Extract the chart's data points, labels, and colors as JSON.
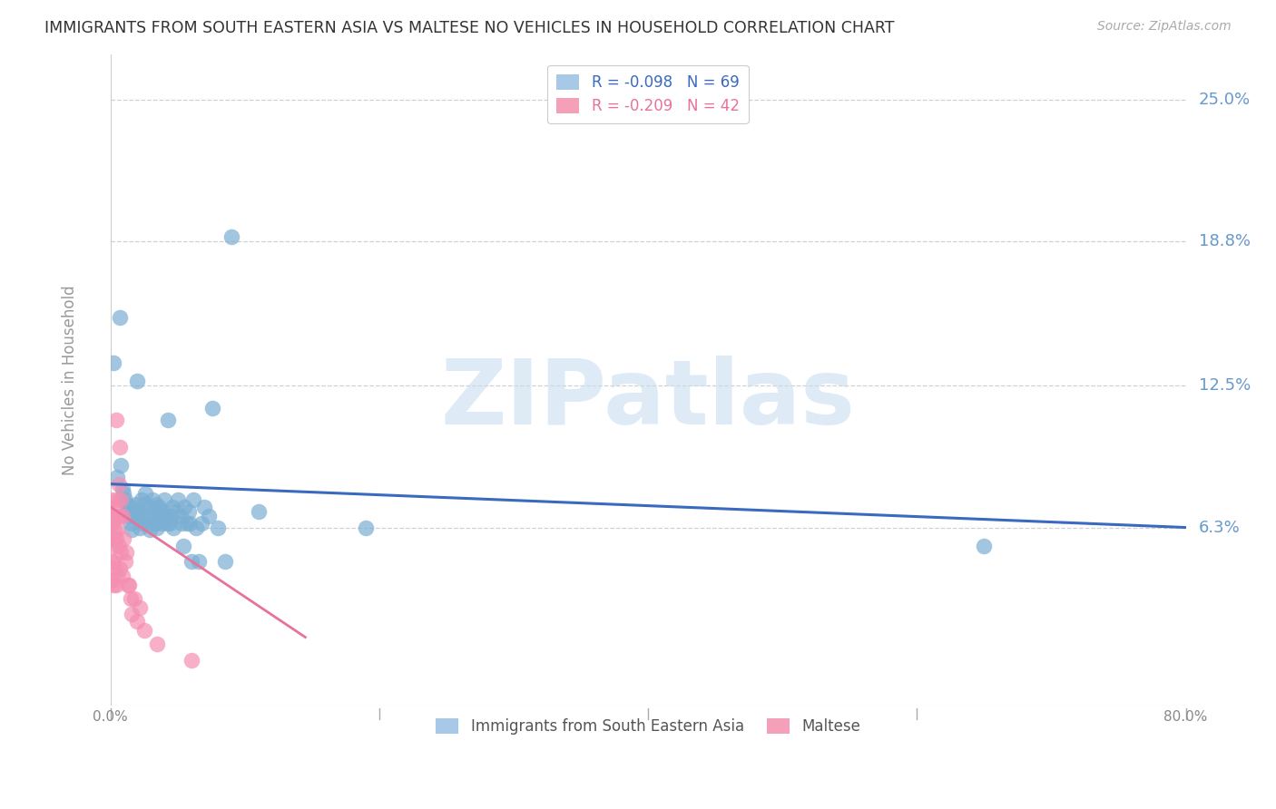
{
  "title": "IMMIGRANTS FROM SOUTH EASTERN ASIA VS MALTESE NO VEHICLES IN HOUSEHOLD CORRELATION CHART",
  "source": "Source: ZipAtlas.com",
  "ylabel": "No Vehicles in Household",
  "legend_label_blue": "Immigrants from South Eastern Asia",
  "legend_label_pink": "Maltese",
  "y_tick_values": [
    0.063,
    0.125,
    0.188,
    0.25
  ],
  "y_tick_labels": [
    "6.3%",
    "12.5%",
    "18.8%",
    "25.0%"
  ],
  "x_min": 0.0,
  "x_max": 0.8,
  "y_min": -0.015,
  "y_max": 0.27,
  "blue_scatter_x": [
    0.002,
    0.005,
    0.007,
    0.008,
    0.009,
    0.01,
    0.011,
    0.012,
    0.013,
    0.014,
    0.015,
    0.015,
    0.016,
    0.017,
    0.018,
    0.019,
    0.02,
    0.021,
    0.022,
    0.022,
    0.023,
    0.024,
    0.025,
    0.026,
    0.027,
    0.028,
    0.029,
    0.03,
    0.031,
    0.032,
    0.033,
    0.034,
    0.035,
    0.035,
    0.036,
    0.037,
    0.038,
    0.039,
    0.04,
    0.041,
    0.042,
    0.043,
    0.044,
    0.045,
    0.046,
    0.047,
    0.048,
    0.05,
    0.052,
    0.053,
    0.054,
    0.055,
    0.057,
    0.058,
    0.059,
    0.06,
    0.062,
    0.064,
    0.066,
    0.068,
    0.07,
    0.073,
    0.076,
    0.08,
    0.085,
    0.09,
    0.11,
    0.19,
    0.65
  ],
  "blue_scatter_y": [
    0.135,
    0.085,
    0.155,
    0.09,
    0.08,
    0.078,
    0.075,
    0.073,
    0.07,
    0.068,
    0.065,
    0.072,
    0.062,
    0.068,
    0.07,
    0.073,
    0.127,
    0.07,
    0.068,
    0.063,
    0.075,
    0.065,
    0.073,
    0.078,
    0.068,
    0.065,
    0.062,
    0.072,
    0.075,
    0.07,
    0.065,
    0.073,
    0.068,
    0.063,
    0.072,
    0.069,
    0.065,
    0.07,
    0.075,
    0.068,
    0.065,
    0.11,
    0.065,
    0.068,
    0.072,
    0.063,
    0.07,
    0.075,
    0.068,
    0.065,
    0.055,
    0.072,
    0.065,
    0.07,
    0.065,
    0.048,
    0.075,
    0.063,
    0.048,
    0.065,
    0.072,
    0.068,
    0.115,
    0.063,
    0.048,
    0.19,
    0.07,
    0.063,
    0.055
  ],
  "pink_scatter_x": [
    0.001,
    0.001,
    0.001,
    0.001,
    0.001,
    0.002,
    0.002,
    0.002,
    0.002,
    0.003,
    0.003,
    0.003,
    0.003,
    0.004,
    0.004,
    0.004,
    0.004,
    0.005,
    0.005,
    0.005,
    0.006,
    0.006,
    0.007,
    0.007,
    0.007,
    0.008,
    0.008,
    0.009,
    0.009,
    0.01,
    0.011,
    0.012,
    0.013,
    0.014,
    0.015,
    0.016,
    0.018,
    0.02,
    0.022,
    0.025,
    0.035,
    0.06
  ],
  "pink_scatter_y": [
    0.065,
    0.075,
    0.058,
    0.048,
    0.04,
    0.068,
    0.058,
    0.048,
    0.038,
    0.072,
    0.062,
    0.055,
    0.045,
    0.11,
    0.068,
    0.058,
    0.038,
    0.075,
    0.062,
    0.042,
    0.082,
    0.055,
    0.098,
    0.068,
    0.045,
    0.075,
    0.052,
    0.068,
    0.042,
    0.058,
    0.048,
    0.052,
    0.038,
    0.038,
    0.032,
    0.025,
    0.032,
    0.022,
    0.028,
    0.018,
    0.012,
    0.005
  ],
  "blue_color": "#7bafd4",
  "pink_color": "#f48fb1",
  "blue_line_color": "#3a6abf",
  "pink_line_color": "#e8729a",
  "watermark": "ZIPatlas",
  "background_color": "#ffffff",
  "grid_color": "#d0d0d0"
}
